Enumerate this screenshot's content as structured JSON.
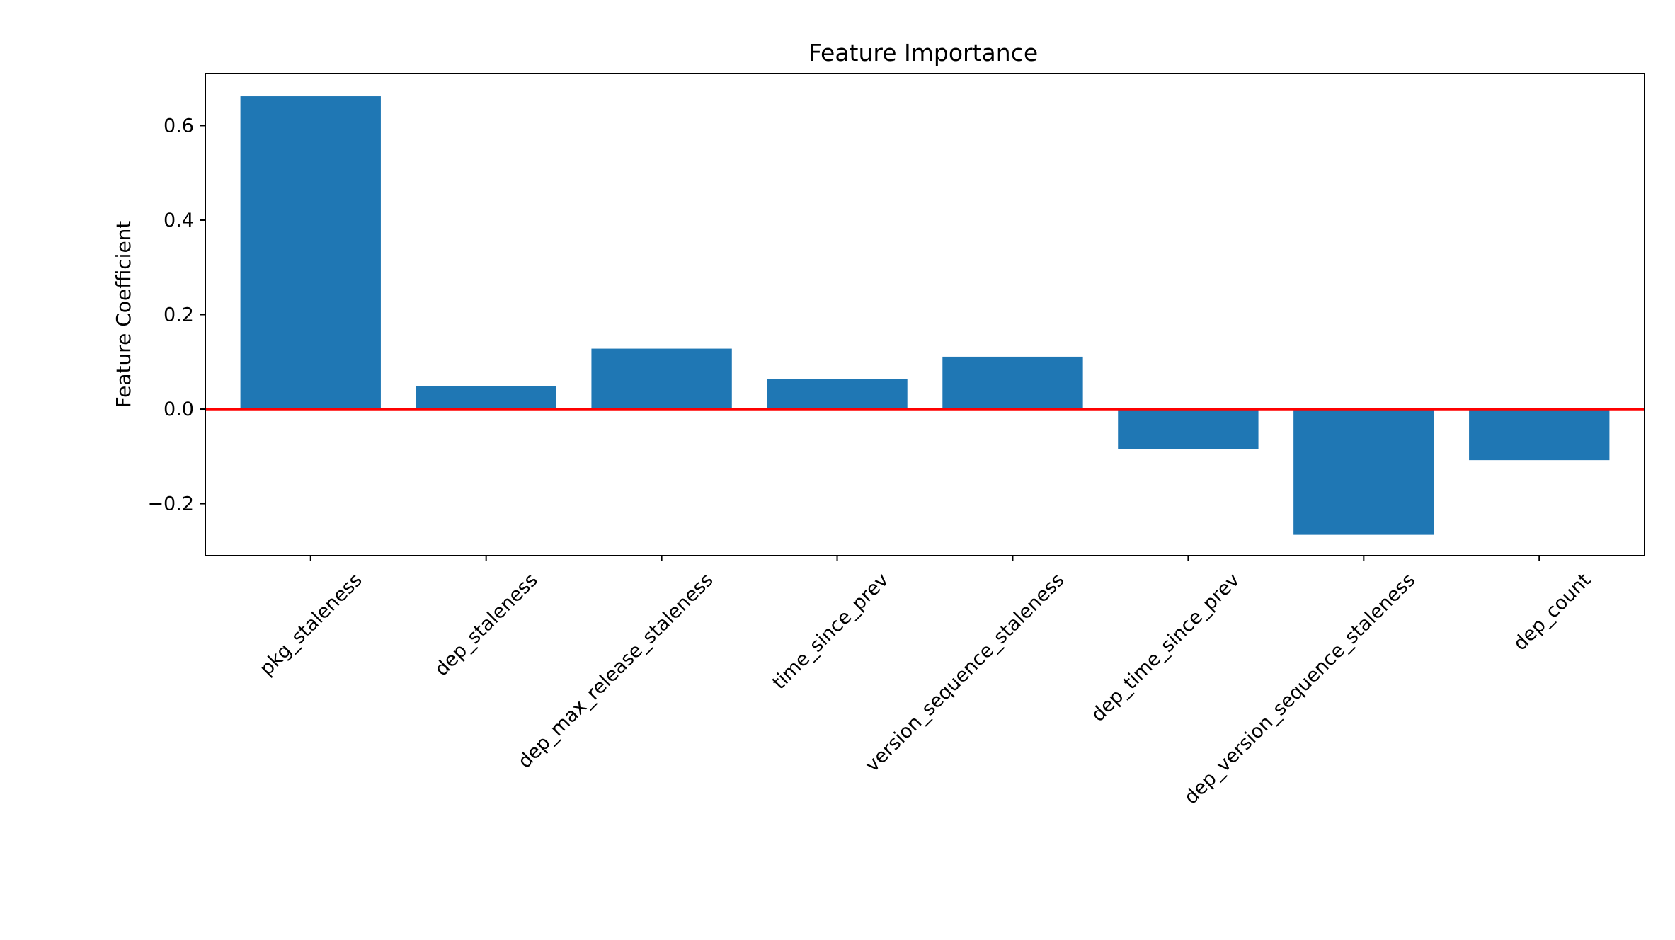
{
  "chart_data": {
    "type": "bar",
    "title": "Feature Importance",
    "xlabel": "",
    "ylabel": "Feature Coefficient",
    "categories": [
      "pkg_staleness",
      "dep_staleness",
      "dep_max_release_staleness",
      "time_since_prev",
      "version_sequence_staleness",
      "dep_time_since_prev",
      "dep_version_sequence_staleness",
      "dep_count"
    ],
    "values": [
      0.662,
      0.048,
      0.128,
      0.064,
      0.111,
      -0.085,
      -0.266,
      -0.108
    ],
    "ylim": [
      -0.31,
      0.71
    ],
    "yticks": [
      -0.2,
      0.0,
      0.2,
      0.4,
      0.6
    ],
    "ytick_labels": [
      "−0.2",
      "0.0",
      "0.2",
      "0.4",
      "0.6"
    ],
    "grid": false,
    "reference_line": {
      "y": 0.0,
      "color": "#ff0000"
    },
    "colors": {
      "bar": "#1f77b4",
      "reference_line": "#ff0000",
      "axes": "#000000"
    }
  }
}
